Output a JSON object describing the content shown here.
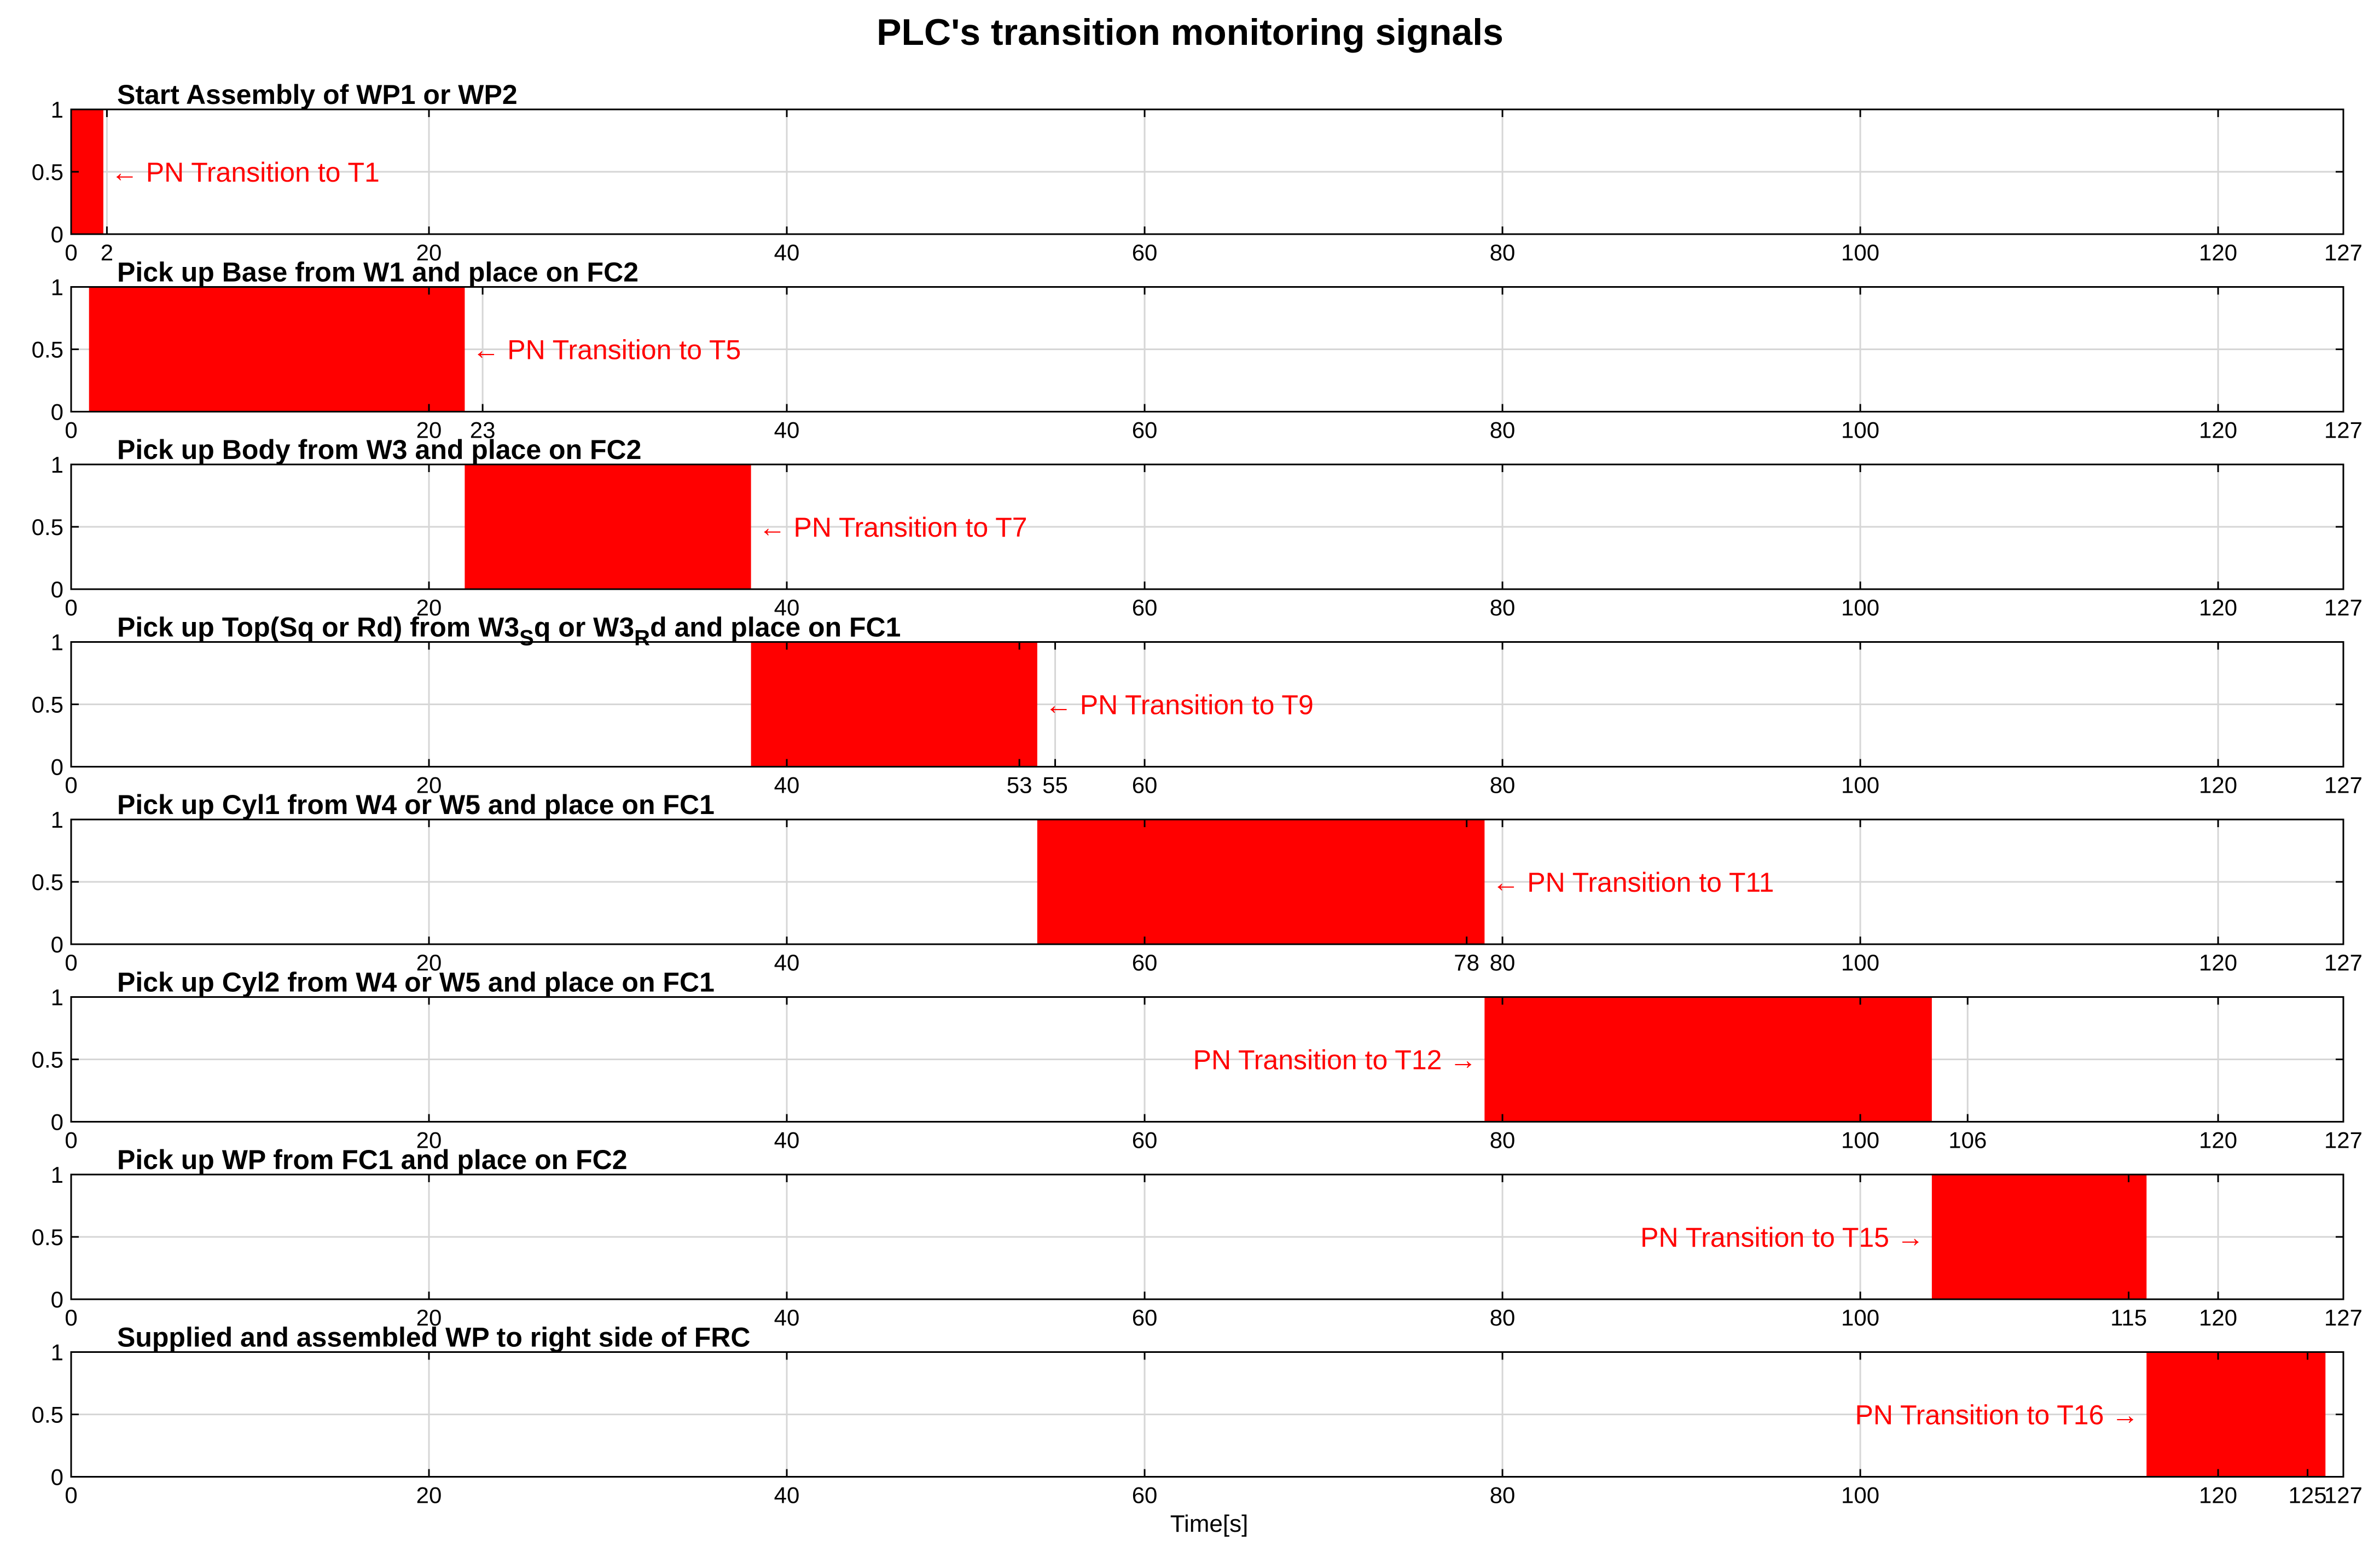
{
  "chart_data": {
    "type": "bar",
    "title": "PLC's transition monitoring signals",
    "xlabel": "Time[s]",
    "xlim": [
      0,
      127
    ],
    "ylim": [
      0,
      1
    ],
    "yticks": [
      "0",
      "0.5",
      "1"
    ],
    "grid": true,
    "bar_color": "#ff0000",
    "panels": [
      {
        "title": "Start Assembly of WP1 or WP2",
        "start": 0,
        "end": 1.8,
        "xticks": [
          0,
          2,
          20,
          40,
          60,
          80,
          100,
          120,
          127
        ],
        "annotation": {
          "text": "← PN Transition to T1",
          "x": 1.8,
          "y": 0.5,
          "side": "right"
        }
      },
      {
        "title": "Pick up Base from W1 and place on FC2",
        "start": 1,
        "end": 22,
        "xticks": [
          0,
          20,
          23,
          40,
          60,
          80,
          100,
          120,
          127
        ],
        "annotation": {
          "text": "← PN Transition to T5",
          "x": 22,
          "y": 0.5,
          "side": "right"
        }
      },
      {
        "title": "Pick up Body from W3 and place on FC2",
        "start": 22,
        "end": 38,
        "xticks": [
          0,
          20,
          40,
          60,
          80,
          100,
          120,
          127
        ],
        "annotation": {
          "text": "← PN Transition to T7",
          "x": 38,
          "y": 0.5,
          "side": "right"
        }
      },
      {
        "title_parts": [
          "Pick up Top(Sq or Rd) from W3",
          "S",
          "q or W3",
          "R",
          "d and place on FC1"
        ],
        "start": 38,
        "end": 54,
        "xticks": [
          0,
          20,
          40,
          53,
          55,
          60,
          80,
          100,
          120,
          127
        ],
        "annotation": {
          "text": "← PN Transition to T9",
          "x": 54,
          "y": 0.5,
          "side": "right"
        }
      },
      {
        "title": "Pick up Cyl1 from W4 or W5 and place on FC1",
        "start": 54,
        "end": 79,
        "xticks": [
          0,
          20,
          40,
          60,
          78,
          80,
          100,
          120,
          127
        ],
        "annotation": {
          "text": "← PN Transition to T11",
          "x": 79,
          "y": 0.5,
          "side": "right"
        }
      },
      {
        "title": "Pick up Cyl2 from W4 or W5 and place on FC1",
        "start": 79,
        "end": 104,
        "xticks": [
          0,
          20,
          40,
          60,
          80,
          100,
          106,
          120,
          127
        ],
        "annotation": {
          "text": "PN Transition to T12 →",
          "x": 79,
          "y": 0.5,
          "side": "left"
        }
      },
      {
        "title": "Pick up WP from FC1 and place on FC2",
        "start": 104,
        "end": 116,
        "xticks": [
          0,
          20,
          40,
          60,
          80,
          100,
          115,
          120,
          127
        ],
        "annotation": {
          "text": "PN Transition to T15 →",
          "x": 104,
          "y": 0.5,
          "side": "left"
        }
      },
      {
        "title": "Supplied and assembled WP to right side of FRC",
        "start": 116,
        "end": 126,
        "xticks": [
          0,
          20,
          40,
          60,
          80,
          100,
          120,
          125,
          127
        ],
        "annotation": {
          "text": "PN Transition to T16 →",
          "x": 116,
          "y": 0.5,
          "side": "left"
        }
      }
    ]
  }
}
